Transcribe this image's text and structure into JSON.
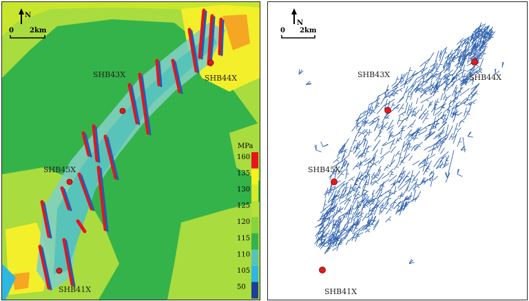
{
  "left_map": {
    "north_label": "N",
    "scale": {
      "start": "0",
      "end": "2km"
    },
    "legend": {
      "unit": "MPa",
      "ticks": [
        "160",
        "135",
        "130",
        "125",
        "120",
        "115",
        "110",
        "105",
        "50"
      ],
      "colors": [
        "#e8141b",
        "#f6f21c",
        "#d9ea2a",
        "#b7e23a",
        "#86d33f",
        "#34b34a",
        "#58c3b8",
        "#2fb7e3",
        "#1d3f9c"
      ]
    },
    "wells": [
      {
        "name": "SHB44X"
      },
      {
        "name": "SHB43X"
      },
      {
        "name": "SHB45X"
      },
      {
        "name": "SHB41X"
      }
    ]
  },
  "right_map": {
    "north_label": "N",
    "scale": {
      "start": "0",
      "end": "2km"
    },
    "wells": [
      {
        "name": "SHB43X"
      },
      {
        "name": "SHB44X"
      },
      {
        "name": "SHB45X"
      },
      {
        "name": "SHB41X"
      }
    ],
    "colors": {
      "fracture": "#2f62b0",
      "well": "#e3191c"
    }
  }
}
